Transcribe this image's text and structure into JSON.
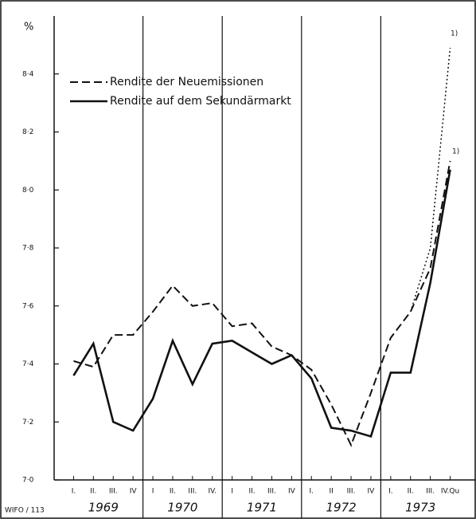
{
  "chart_data": {
    "type": "line",
    "y_axis_label": "%",
    "source": "WIFO / 113",
    "categories": [
      "I.",
      "II.",
      "III.",
      "IV",
      "I",
      "II.",
      "III.",
      "IV.",
      "I",
      "II.",
      "III.",
      "IV",
      "I.",
      "II",
      "III.",
      "IV",
      "I.",
      "II.",
      "III.",
      "IV.Qu"
    ],
    "years": [
      "1969",
      "1970",
      "1971",
      "1972",
      "1973"
    ],
    "series": [
      {
        "name": "Rendite der Neuemissionen",
        "color": "#111111",
        "dash": "dashed",
        "values": [
          7.41,
          7.39,
          7.5,
          7.5,
          7.58,
          7.67,
          7.6,
          7.61,
          7.53,
          7.54,
          7.46,
          7.43,
          7.38,
          7.26,
          7.12,
          7.3,
          7.49,
          7.58,
          7.73,
          8.1
        ]
      },
      {
        "name": "Rendite auf dem Sekundärmarkt",
        "color": "#111111",
        "dash": "solid",
        "values": [
          7.36,
          7.47,
          7.2,
          7.17,
          7.28,
          7.48,
          7.33,
          7.47,
          7.48,
          7.44,
          7.4,
          7.43,
          7.35,
          7.18,
          7.17,
          7.15,
          7.37,
          7.37,
          7.68,
          8.07
        ]
      },
      {
        "color": "#111111",
        "dash": "dotted",
        "values": [
          null,
          null,
          null,
          null,
          null,
          null,
          null,
          null,
          null,
          null,
          null,
          null,
          null,
          null,
          null,
          null,
          null,
          7.58,
          7.8,
          8.49
        ]
      }
    ],
    "annotations": [
      "1)",
      "1)"
    ],
    "ylim": [
      7.0,
      8.6
    ],
    "yticks": [
      {
        "value": 7.0,
        "label": "7·0"
      },
      {
        "value": 7.2,
        "label": "7·2"
      },
      {
        "value": 7.4,
        "label": "7·4"
      },
      {
        "value": 7.6,
        "label": "7·6"
      },
      {
        "value": 7.8,
        "label": "7·8"
      },
      {
        "value": 8.0,
        "label": "8·0"
      },
      {
        "value": 8.2,
        "label": "8·2"
      },
      {
        "value": 8.4,
        "label": "8·4"
      }
    ],
    "legend": "upper left"
  }
}
